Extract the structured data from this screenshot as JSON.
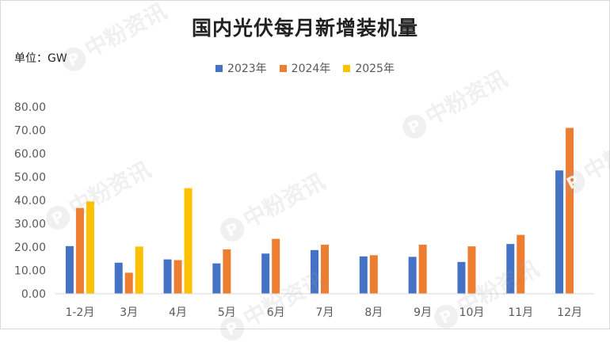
{
  "chart_data": {
    "type": "bar",
    "title": "国内光伏每月新增装机量",
    "unit_label": "单位：GW",
    "categories": [
      "1-2月",
      "3月",
      "4月",
      "5月",
      "6月",
      "7月",
      "8月",
      "9月",
      "10月",
      "11月",
      "12月"
    ],
    "series": [
      {
        "name": "2023年",
        "color": "#4472c4",
        "values": [
          20.4,
          13.3,
          14.7,
          13.0,
          17.2,
          18.7,
          16.0,
          15.8,
          13.6,
          21.3,
          52.8
        ]
      },
      {
        "name": "2024年",
        "color": "#ed7d31",
        "values": [
          36.7,
          9.0,
          14.4,
          19.0,
          23.5,
          21.0,
          16.5,
          21.0,
          20.3,
          25.2,
          71.0
        ]
      },
      {
        "name": "2025年",
        "color": "#ffc000",
        "values": [
          39.5,
          20.2,
          45.2,
          null,
          null,
          null,
          null,
          null,
          null,
          null,
          null
        ]
      }
    ],
    "ylim": [
      0,
      80
    ],
    "yticks": [
      "0.00",
      "10.00",
      "20.00",
      "30.00",
      "40.00",
      "50.00",
      "60.00",
      "70.00",
      "80.00"
    ],
    "xlabel": "",
    "ylabel": "",
    "grid": false,
    "legend_position": "top"
  },
  "watermark": {
    "text": "中粉资讯",
    "logo_letter": "P"
  }
}
